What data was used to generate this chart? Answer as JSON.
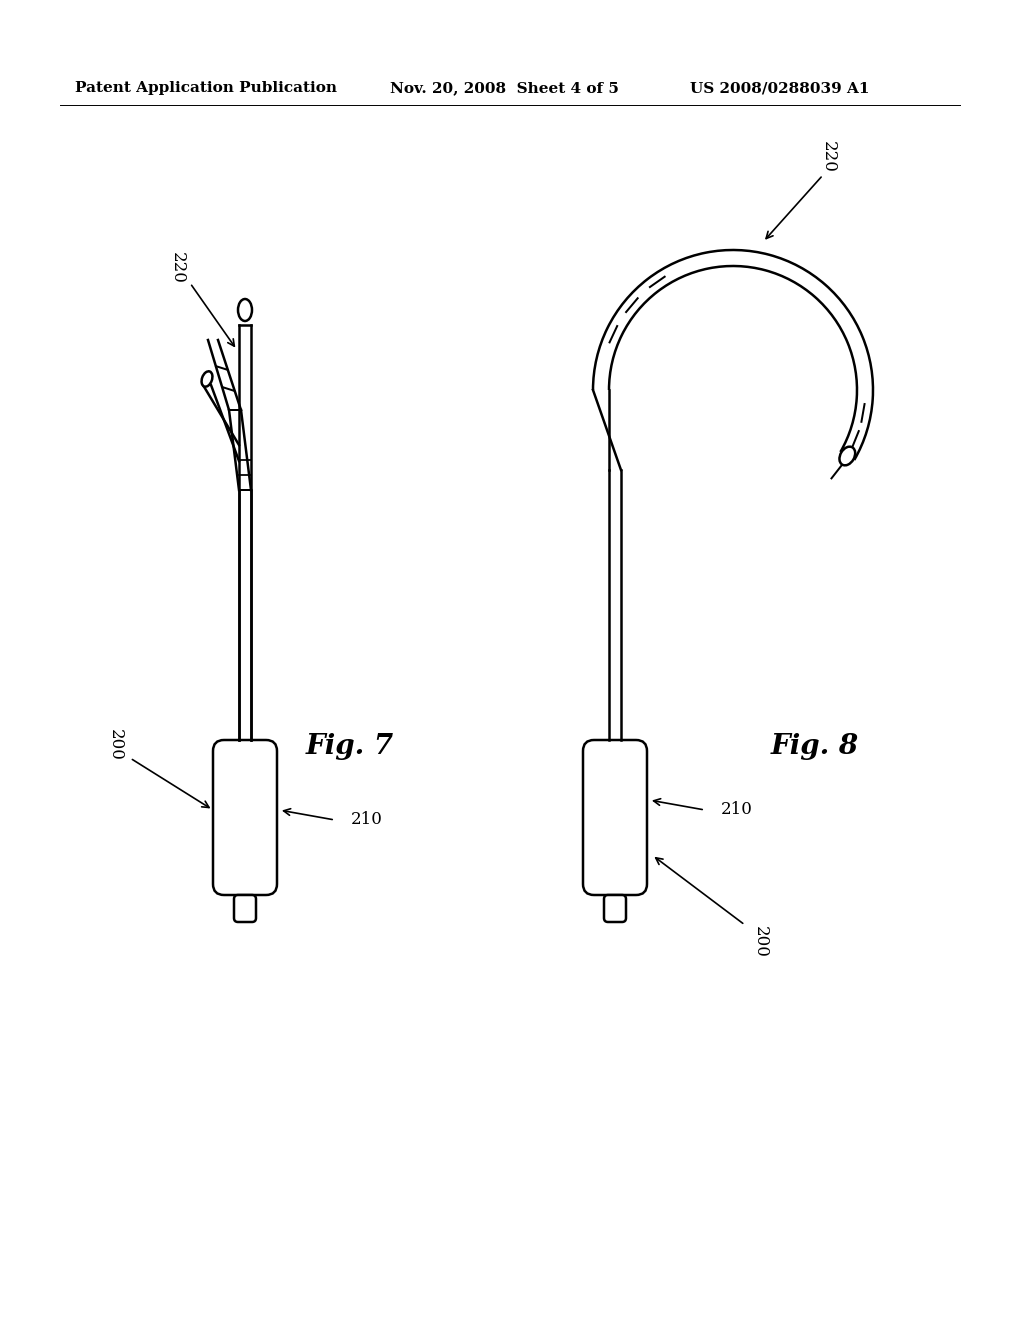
{
  "background_color": "#ffffff",
  "header_left": "Patent Application Publication",
  "header_mid": "Nov. 20, 2008  Sheet 4 of 5",
  "header_right": "US 2008/0288039 A1",
  "header_fontsize": 11,
  "fig7_label": "Fig. 7",
  "fig8_label": "Fig. 8",
  "line_color": "#000000",
  "line_width": 1.8
}
